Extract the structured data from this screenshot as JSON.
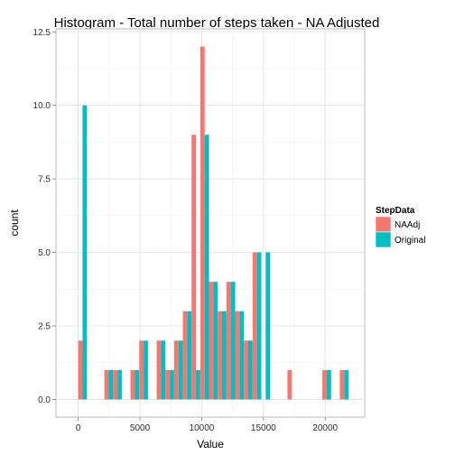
{
  "chart_data": {
    "type": "bar",
    "title": "Histogram - Total number of steps taken - NA Adjusted",
    "xlabel": "Value",
    "ylabel": "count",
    "xlim": [
      -1800,
      23200
    ],
    "ylim": [
      -0.6,
      12.6
    ],
    "x_ticks": [
      0,
      5000,
      10000,
      15000,
      20000
    ],
    "x_tick_labels": [
      "0",
      "5000",
      "10000",
      "15000",
      "20000"
    ],
    "y_ticks": [
      0,
      2.5,
      5,
      7.5,
      10,
      12.5
    ],
    "y_tick_labels": [
      "0.0",
      "2.5",
      "5.0",
      "7.5",
      "10.0",
      "12.5"
    ],
    "bin_width": 706,
    "bin_centers": [
      353,
      2471,
      3177,
      4590,
      5296,
      6709,
      7415,
      8121,
      8827,
      9533,
      10239,
      10945,
      11651,
      12357,
      13063,
      13769,
      14475,
      15181,
      17299,
      20123,
      21536
    ],
    "grid": true,
    "legend": {
      "title": "StepData",
      "position": "right",
      "entries": [
        "NAAdj",
        "Original"
      ]
    },
    "series": [
      {
        "name": "NAAdj",
        "color": "#F8766D",
        "values": [
          2,
          1,
          1,
          1,
          2,
          2,
          1,
          2,
          3,
          9,
          12,
          4,
          3,
          4,
          3,
          2,
          5,
          0,
          1,
          1,
          1
        ]
      },
      {
        "name": "Original",
        "color": "#00BFC4",
        "values": [
          10,
          1,
          1,
          1,
          2,
          2,
          1,
          2,
          3,
          1,
          9,
          4,
          3,
          4,
          3,
          2,
          5,
          5,
          0,
          1,
          1
        ]
      }
    ]
  }
}
